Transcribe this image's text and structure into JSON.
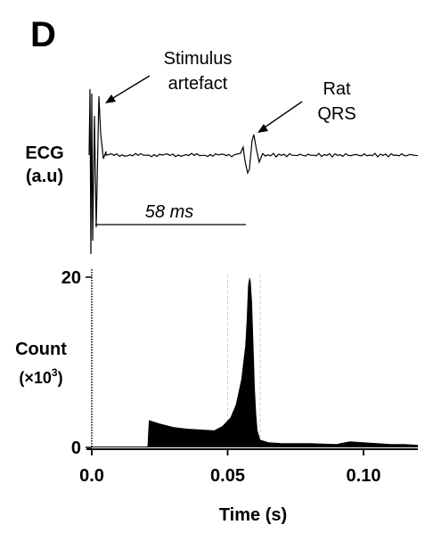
{
  "chart_data": [
    {
      "type": "line",
      "panel_label": "D",
      "ylabel_lines": [
        "ECG",
        "(a.u)"
      ],
      "annotations": {
        "stimulus": [
          "Stimulus",
          "artefact"
        ],
        "qrs": [
          "Rat",
          "QRS"
        ],
        "interval": "58 ms"
      },
      "events": {
        "stimulus_time": 0.0,
        "qrs_time": 0.058
      },
      "xlim": [
        0.0,
        0.12
      ]
    },
    {
      "type": "bar",
      "ylabel_lines": [
        "Count",
        "(×10",
        "3",
        ")"
      ],
      "xlabel": "Time (s)",
      "xlim": [
        0.0,
        0.12
      ],
      "ylim": [
        0,
        20
      ],
      "yticks": [
        0,
        20
      ],
      "xticks": [
        0.0,
        0.05,
        0.1
      ],
      "xtick_labels": [
        "0.0",
        "0.05",
        "0.10"
      ],
      "ref_lines_x": [
        0.05,
        0.062
      ],
      "x": [
        0.0,
        0.0205,
        0.021,
        0.025,
        0.03,
        0.035,
        0.04,
        0.045,
        0.048,
        0.051,
        0.053,
        0.055,
        0.0565,
        0.057,
        0.0575,
        0.058,
        0.0585,
        0.059,
        0.0595,
        0.06,
        0.0605,
        0.061,
        0.062,
        0.065,
        0.07,
        0.08,
        0.09,
        0.095,
        0.1,
        0.105,
        0.11,
        0.115,
        0.12
      ],
      "values": [
        0.1,
        0.1,
        3.2,
        2.8,
        2.4,
        2.2,
        2.1,
        2.0,
        2.5,
        3.5,
        5.0,
        8.0,
        12.0,
        15.0,
        19.0,
        20.0,
        19.5,
        17.0,
        12.0,
        7.0,
        4.0,
        2.0,
        0.9,
        0.6,
        0.5,
        0.5,
        0.4,
        0.7,
        0.6,
        0.5,
        0.4,
        0.4,
        0.3
      ]
    }
  ]
}
